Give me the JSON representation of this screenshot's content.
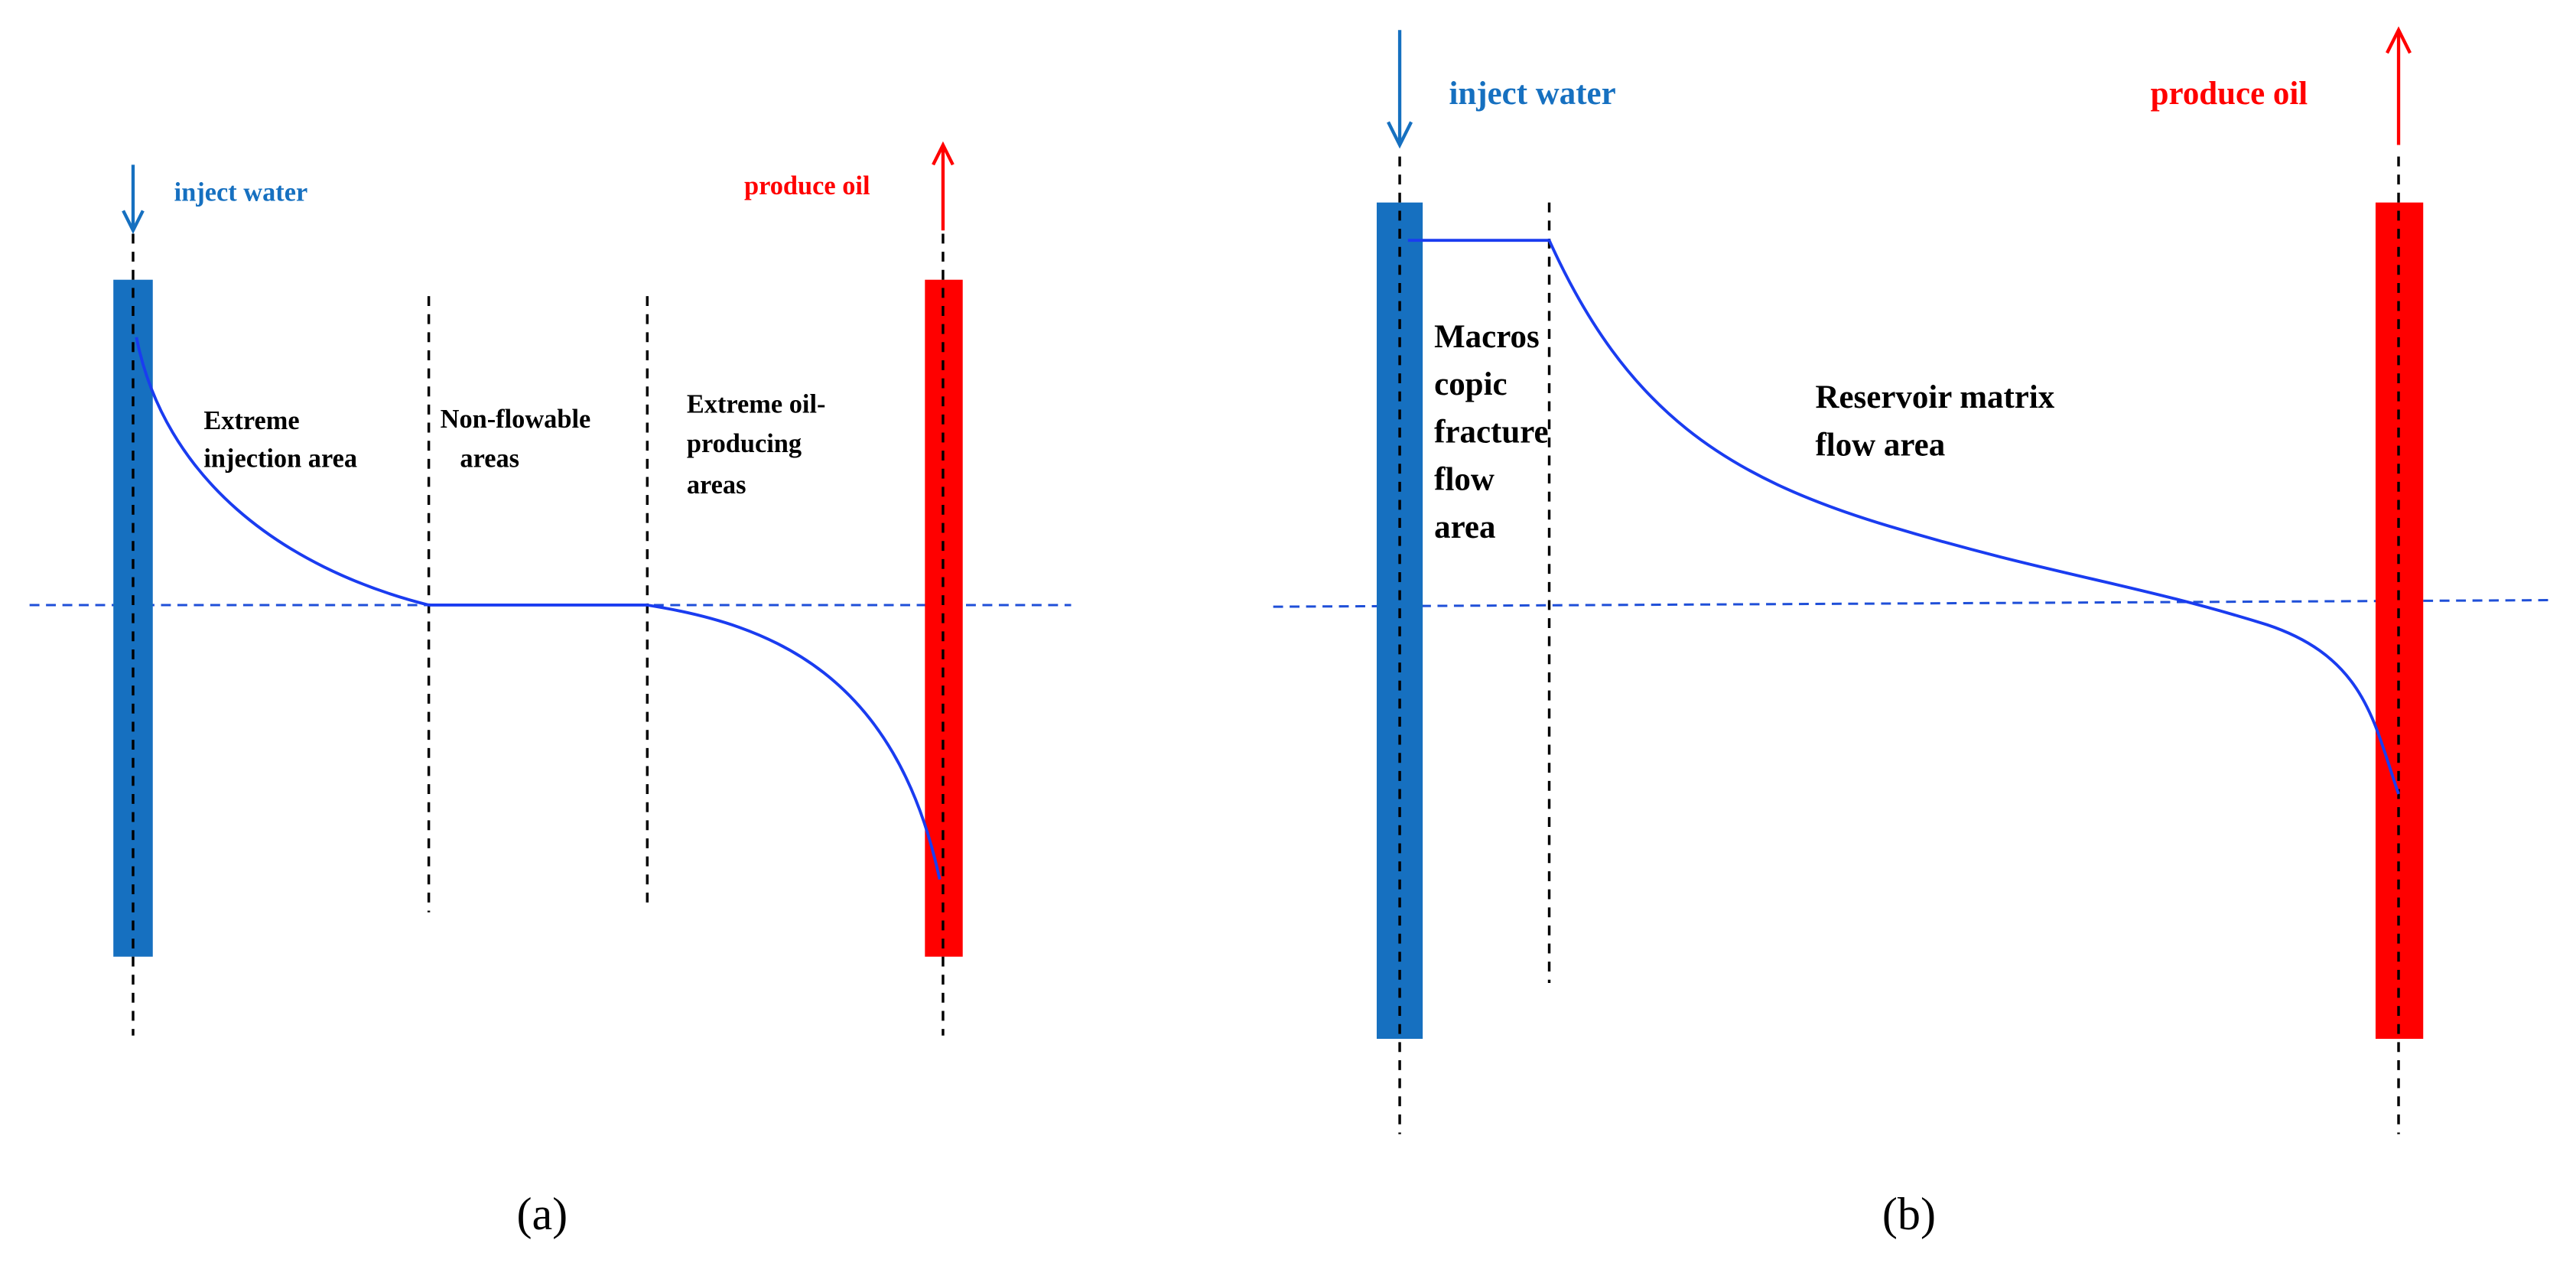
{
  "panel_a": {
    "inject_label": "inject water",
    "produce_label": "produce oil",
    "zones": [
      [
        "Extreme",
        "injection area"
      ],
      [
        "Non-flowable",
        "areas"
      ],
      [
        "Extreme oil-",
        "producing",
        "areas"
      ]
    ],
    "caption": "(a)"
  },
  "panel_b": {
    "inject_label": "inject water",
    "produce_label": "produce oil",
    "zones": [
      [
        "Macros",
        "copic",
        "fracture",
        "flow",
        "area"
      ],
      [
        "Reservoir matrix",
        "flow area"
      ]
    ],
    "caption": "(b)"
  }
}
